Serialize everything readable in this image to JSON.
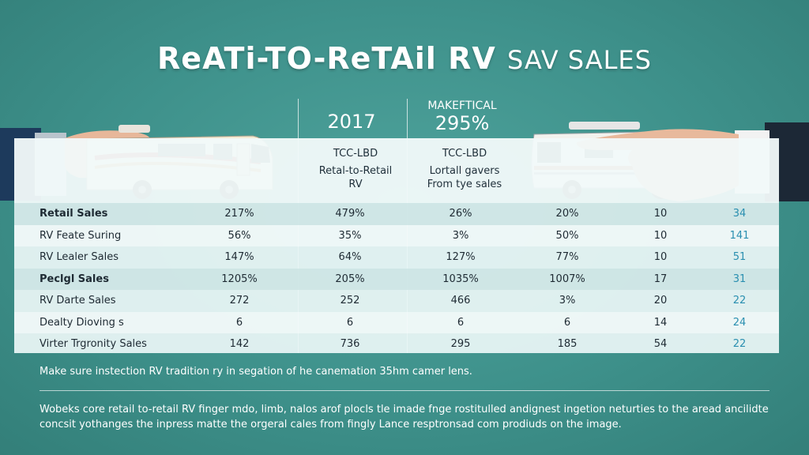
{
  "title": {
    "main": "ReATi-TO-ReTAil RV",
    "sub": "SAV SALES"
  },
  "colors": {
    "background": "#3e918b",
    "panel": "#ebf6f6",
    "accent": "#2a8fb0"
  },
  "chart_data": {
    "type": "table",
    "headers": {
      "col1_year": "2017",
      "col1_code": "TCC-LBD",
      "col1_desc_line1": "Retal-to-Retail",
      "col1_desc_line2": "RV",
      "col2_top": "MAKEFTICAL",
      "col2_big": "295%",
      "col2_code": "TCC-LBD",
      "col2_desc_line1": "Lortall gavers",
      "col2_desc_line2": "From tye sales"
    },
    "rows": [
      {
        "label": "Retail Sales",
        "bold": true,
        "values": [
          "217%",
          "479%",
          "26%",
          "20%",
          "10",
          "34"
        ]
      },
      {
        "label": "RV Feate Suring",
        "bold": false,
        "values": [
          "56%",
          "35%",
          "3%",
          "50%",
          "10",
          "141"
        ]
      },
      {
        "label": "RV Lealer Sales",
        "bold": false,
        "values": [
          "147%",
          "64%",
          "127%",
          "77%",
          "10",
          "51"
        ]
      },
      {
        "label": "Peclgl Sales",
        "bold": true,
        "values": [
          "1205%",
          "205%",
          "1035%",
          "1007%",
          "17",
          "31"
        ]
      },
      {
        "label": "RV Darte Sales",
        "bold": false,
        "values": [
          "272",
          "252",
          "466",
          "3%",
          "20",
          "22"
        ]
      },
      {
        "label": "Dealty Dioving s",
        "bold": false,
        "values": [
          "6",
          "6",
          "6",
          "6",
          "14",
          "24"
        ]
      },
      {
        "label": "Virter Trgronity Sales",
        "bold": false,
        "values": [
          "142",
          "736",
          "295",
          "185",
          "54",
          "22"
        ]
      }
    ]
  },
  "notes": {
    "line1": "Make sure instection RV tradition ry in segation of he canemation 35hm camer lens.",
    "line2": "Wobeks core retail to-retail RV finger mdo, limb, nalos arof plocls tle imade fnge rostitulled andignest ingetion neturties to the aread ancilidte concsit yothanges the inpress matte the orgeral cales from fingly Lance resptronsad com prodiuds on the image."
  }
}
